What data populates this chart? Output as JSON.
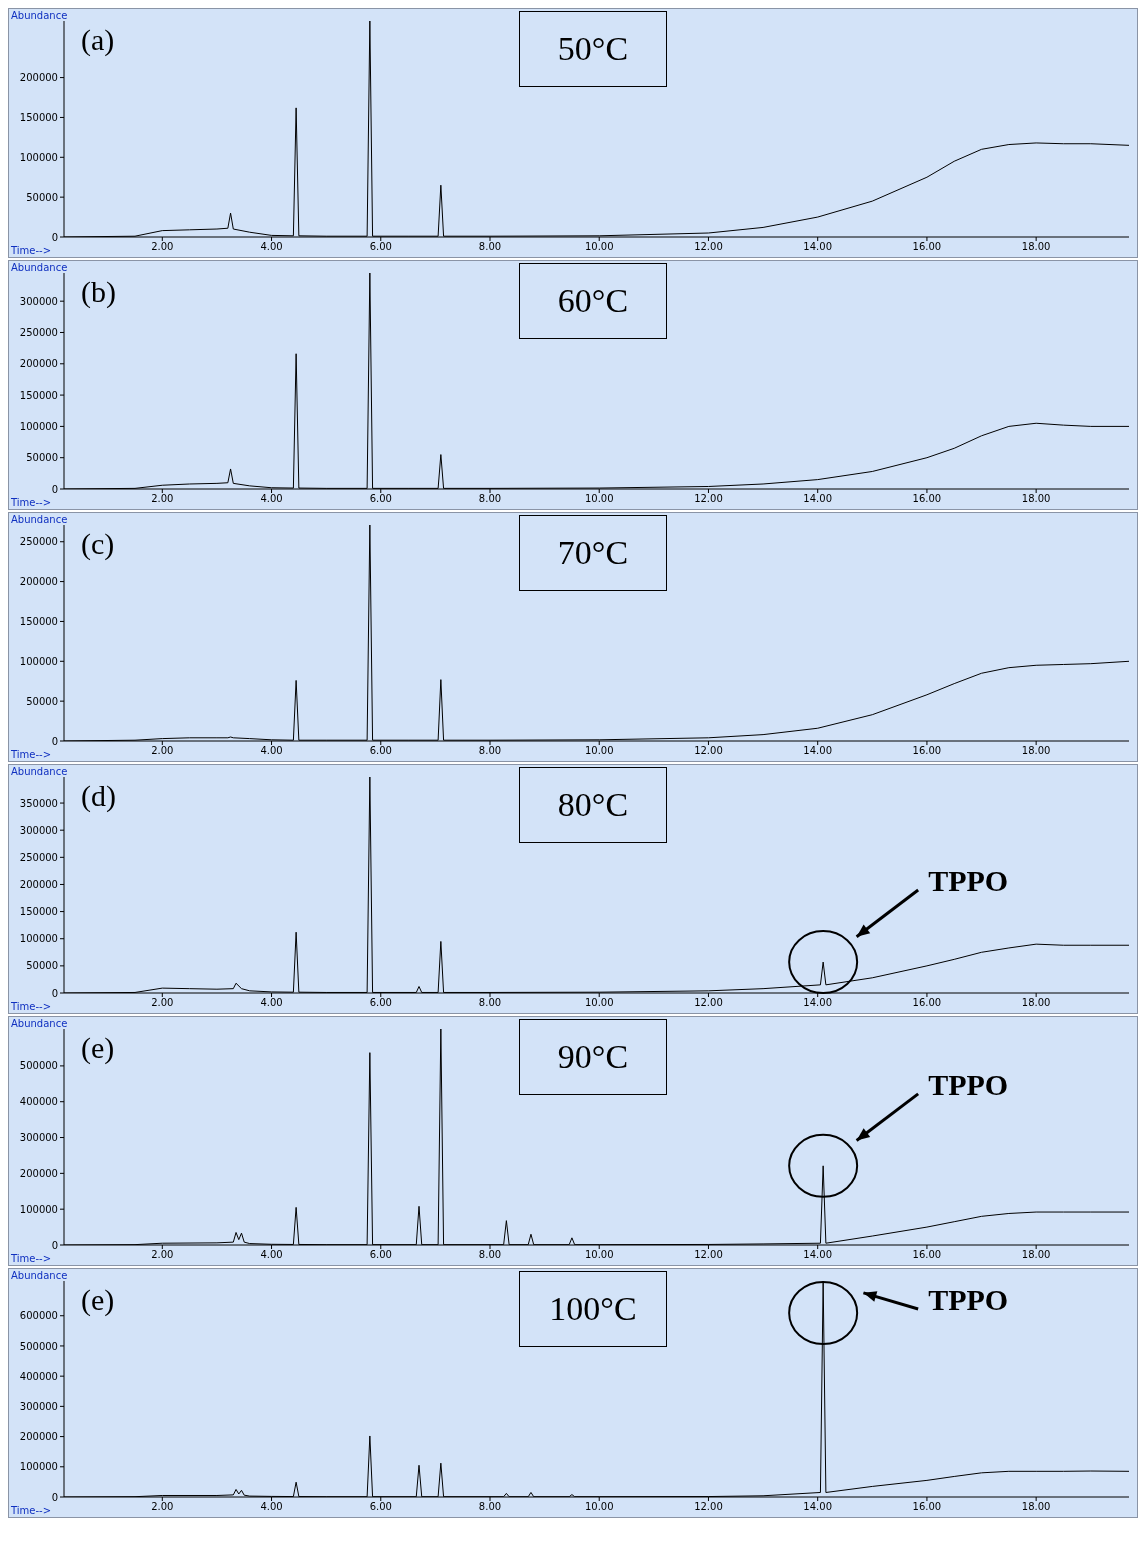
{
  "chart_data": [
    {
      "type": "line",
      "title": "50°C",
      "xlabel": "Time-->",
      "ylabel": "Abundance",
      "annotations": [
        "(a)"
      ],
      "color": "#000000",
      "marker": "none",
      "x": [
        0.2,
        1.5,
        2.0,
        2.5,
        3.0,
        3.2,
        3.25,
        3.3,
        3.6,
        4.0,
        4.4,
        4.45,
        4.5,
        5.0,
        5.75,
        5.8,
        5.85,
        6.5,
        7.05,
        7.1,
        7.15,
        8,
        10,
        12,
        13,
        14,
        15,
        16,
        16.5,
        17,
        17.5,
        18,
        18.5,
        19,
        19.7
      ],
      "values": [
        0,
        1000,
        8000,
        9000,
        10000,
        11000,
        30000,
        10000,
        6000,
        2000,
        1500,
        162000,
        1500,
        1000,
        1000,
        271000,
        1000,
        1000,
        1000,
        65000,
        1000,
        1000,
        1500,
        5000,
        12000,
        25000,
        45000,
        75000,
        95000,
        110000,
        116000,
        118000,
        117000,
        117000,
        115000
      ],
      "xlim": [
        0.2,
        19.7
      ],
      "xticks": [
        {
          "value": 2,
          "label": "2.00"
        },
        {
          "value": 4,
          "label": "4.00"
        },
        {
          "value": 6,
          "label": "6.00"
        },
        {
          "value": 8,
          "label": "8.00"
        },
        {
          "value": 10,
          "label": "10.00"
        },
        {
          "value": 12,
          "label": "12.00"
        },
        {
          "value": 14,
          "label": "14.00"
        },
        {
          "value": 16,
          "label": "16.00"
        },
        {
          "value": 18,
          "label": "18.00"
        }
      ],
      "ylim": [
        0,
        271000
      ],
      "yticks": [
        0,
        50000,
        100000,
        150000,
        200000
      ]
    },
    {
      "type": "line",
      "title": "60°C",
      "xlabel": "Time-->",
      "ylabel": "Abundance",
      "annotations": [
        "(b)"
      ],
      "color": "#000000",
      "marker": "none",
      "x": [
        0.2,
        1.5,
        2.0,
        2.5,
        3.0,
        3.2,
        3.25,
        3.3,
        3.6,
        4.0,
        4.4,
        4.45,
        4.5,
        5.0,
        5.75,
        5.8,
        5.85,
        6.5,
        7.05,
        7.1,
        7.15,
        8,
        10,
        12,
        13,
        14,
        15,
        16,
        16.5,
        17,
        17.5,
        18,
        18.5,
        19,
        19.7
      ],
      "values": [
        0,
        1000,
        6000,
        8000,
        9000,
        10000,
        32000,
        9000,
        5000,
        2000,
        1500,
        216000,
        1500,
        1000,
        1000,
        345000,
        1000,
        1000,
        1000,
        55000,
        1000,
        1000,
        1500,
        4000,
        8000,
        15000,
        28000,
        50000,
        65000,
        85000,
        100000,
        105000,
        102000,
        100000,
        100000
      ],
      "xlim": [
        0.2,
        19.7
      ],
      "xticks": [
        {
          "value": 2,
          "label": "2.00"
        },
        {
          "value": 4,
          "label": "4.00"
        },
        {
          "value": 6,
          "label": "6.00"
        },
        {
          "value": 8,
          "label": "8.00"
        },
        {
          "value": 10,
          "label": "10.00"
        },
        {
          "value": 12,
          "label": "12.00"
        },
        {
          "value": 14,
          "label": "14.00"
        },
        {
          "value": 16,
          "label": "16.00"
        },
        {
          "value": 18,
          "label": "18.00"
        }
      ],
      "ylim": [
        0,
        345000
      ],
      "yticks": [
        0,
        50000,
        100000,
        150000,
        200000,
        250000,
        300000
      ]
    },
    {
      "type": "line",
      "title": "70°C",
      "xlabel": "Time-->",
      "ylabel": "Abundance",
      "annotations": [
        "(c)"
      ],
      "color": "#000000",
      "marker": "none",
      "x": [
        0.2,
        1.5,
        2.0,
        2.5,
        3.0,
        3.2,
        3.25,
        3.3,
        3.6,
        4.0,
        4.4,
        4.45,
        4.5,
        5.0,
        5.75,
        5.8,
        5.85,
        6.5,
        7.05,
        7.1,
        7.15,
        8,
        10,
        12,
        13,
        14,
        15,
        16,
        16.5,
        17,
        17.5,
        18,
        18.5,
        19,
        19.7
      ],
      "values": [
        0,
        1000,
        3000,
        4000,
        4000,
        4000,
        5000,
        4000,
        3000,
        1500,
        1000,
        76000,
        1000,
        1000,
        1000,
        271000,
        1000,
        1000,
        1000,
        77000,
        1000,
        1000,
        1500,
        4000,
        8000,
        16000,
        33000,
        58000,
        72000,
        85000,
        92000,
        95000,
        96000,
        97000,
        100000
      ],
      "xlim": [
        0.2,
        19.7
      ],
      "xticks": [
        {
          "value": 2,
          "label": "2.00"
        },
        {
          "value": 4,
          "label": "4.00"
        },
        {
          "value": 6,
          "label": "6.00"
        },
        {
          "value": 8,
          "label": "8.00"
        },
        {
          "value": 10,
          "label": "10.00"
        },
        {
          "value": 12,
          "label": "12.00"
        },
        {
          "value": 14,
          "label": "14.00"
        },
        {
          "value": 16,
          "label": "16.00"
        },
        {
          "value": 18,
          "label": "18.00"
        }
      ],
      "ylim": [
        0,
        271000
      ],
      "yticks": [
        0,
        50000,
        100000,
        150000,
        200000,
        250000
      ]
    },
    {
      "type": "line",
      "title": "80°C",
      "xlabel": "Time-->",
      "ylabel": "Abundance",
      "annotations": [
        "(d)",
        "TPPO"
      ],
      "color": "#000000",
      "marker": "none",
      "x": [
        0.2,
        1.5,
        2.0,
        2.5,
        3.0,
        3.3,
        3.35,
        3.45,
        3.6,
        4.0,
        4.4,
        4.45,
        4.5,
        5.0,
        5.75,
        5.8,
        5.85,
        6.65,
        6.7,
        6.75,
        7.05,
        7.1,
        7.15,
        8,
        10,
        12,
        13,
        14.05,
        14.1,
        14.15,
        15,
        16,
        16.5,
        17,
        17.5,
        18,
        18.5,
        19,
        19.7
      ],
      "values": [
        0,
        1000,
        9000,
        8000,
        7000,
        8000,
        18000,
        8000,
        4000,
        2000,
        1500,
        112000,
        1500,
        1000,
        1000,
        398000,
        1000,
        1000,
        12000,
        1000,
        1000,
        95000,
        1000,
        1000,
        1500,
        4000,
        8000,
        15000,
        57000,
        15000,
        28000,
        50000,
        62000,
        75000,
        83000,
        90000,
        88000,
        88000,
        88000
      ],
      "xlim": [
        0.2,
        19.7
      ],
      "xticks": [
        {
          "value": 2,
          "label": "2.00"
        },
        {
          "value": 4,
          "label": "4.00"
        },
        {
          "value": 6,
          "label": "6.00"
        },
        {
          "value": 8,
          "label": "8.00"
        },
        {
          "value": 10,
          "label": "10.00"
        },
        {
          "value": 12,
          "label": "12.00"
        },
        {
          "value": 14,
          "label": "14.00"
        },
        {
          "value": 16,
          "label": "16.00"
        },
        {
          "value": 18,
          "label": "18.00"
        }
      ],
      "ylim": [
        0,
        398000
      ],
      "yticks": [
        0,
        50000,
        100000,
        150000,
        200000,
        250000,
        300000,
        350000
      ]
    },
    {
      "type": "line",
      "title": "90°C",
      "xlabel": "Time-->",
      "ylabel": "Abundance",
      "annotations": [
        "(e)",
        "TPPO"
      ],
      "color": "#000000",
      "marker": "none",
      "x": [
        0.2,
        1.5,
        2.0,
        3.0,
        3.3,
        3.35,
        3.4,
        3.45,
        3.5,
        3.6,
        4.0,
        4.4,
        4.45,
        4.5,
        5.0,
        5.75,
        5.8,
        5.85,
        6.65,
        6.7,
        6.75,
        7.05,
        7.1,
        7.15,
        8.25,
        8.3,
        8.35,
        8.7,
        8.75,
        8.8,
        9.45,
        9.5,
        9.55,
        10,
        12,
        13,
        14.05,
        14.1,
        14.15,
        15,
        16,
        16.5,
        17,
        17.5,
        18,
        18.5,
        19,
        19.7
      ],
      "values": [
        0,
        1000,
        5000,
        6000,
        8000,
        35000,
        15000,
        33000,
        8000,
        4000,
        2000,
        1500,
        105000,
        1500,
        1000,
        1000,
        537000,
        1000,
        1000,
        108000,
        1000,
        1000,
        603000,
        1000,
        1000,
        68000,
        1000,
        1000,
        30000,
        1000,
        1000,
        20000,
        1000,
        1000,
        1500,
        3000,
        5000,
        221000,
        5000,
        25000,
        50000,
        65000,
        80000,
        88000,
        92000,
        92000,
        92000,
        92000
      ],
      "xlim": [
        0.2,
        19.7
      ],
      "xticks": [
        {
          "value": 2,
          "label": "2.00"
        },
        {
          "value": 4,
          "label": "4.00"
        },
        {
          "value": 6,
          "label": "6.00"
        },
        {
          "value": 8,
          "label": "8.00"
        },
        {
          "value": 10,
          "label": "10.00"
        },
        {
          "value": 12,
          "label": "12.00"
        },
        {
          "value": 14,
          "label": "14.00"
        },
        {
          "value": 16,
          "label": "16.00"
        },
        {
          "value": 18,
          "label": "18.00"
        }
      ],
      "ylim": [
        0,
        603000
      ],
      "yticks": [
        0,
        100000,
        200000,
        300000,
        400000,
        500000
      ]
    },
    {
      "type": "line",
      "title": "100°C",
      "xlabel": "Time-->",
      "ylabel": "Abundance",
      "annotations": [
        "(e)",
        "TPPO"
      ],
      "color": "#000000",
      "marker": "none",
      "x": [
        0.2,
        1.5,
        2.0,
        3.0,
        3.3,
        3.35,
        3.4,
        3.45,
        3.5,
        3.6,
        4.0,
        4.4,
        4.45,
        4.5,
        5.0,
        5.75,
        5.8,
        5.85,
        6.65,
        6.7,
        6.75,
        7.05,
        7.1,
        7.15,
        8.25,
        8.3,
        8.35,
        8.7,
        8.75,
        8.8,
        9.45,
        9.5,
        9.55,
        10,
        12,
        13,
        14.05,
        14.1,
        14.15,
        15,
        16,
        16.5,
        17,
        17.5,
        18,
        18.5,
        19,
        19.7
      ],
      "values": [
        0,
        1000,
        5000,
        5000,
        7000,
        25000,
        10000,
        22000,
        6000,
        3000,
        2000,
        1500,
        49000,
        1500,
        1000,
        1000,
        202000,
        1000,
        1000,
        105000,
        1000,
        1000,
        112000,
        1000,
        1000,
        12000,
        1000,
        1000,
        15000,
        1000,
        1000,
        8000,
        1000,
        1000,
        1500,
        4000,
        15000,
        715000,
        15000,
        35000,
        55000,
        68000,
        80000,
        85000,
        85000,
        85000,
        86000,
        85000
      ],
      "xlim": [
        0.2,
        19.7
      ],
      "xticks": [
        {
          "value": 2,
          "label": "2.00"
        },
        {
          "value": 4,
          "label": "4.00"
        },
        {
          "value": 6,
          "label": "6.00"
        },
        {
          "value": 8,
          "label": "8.00"
        },
        {
          "value": 10,
          "label": "10.00"
        },
        {
          "value": 12,
          "label": "12.00"
        },
        {
          "value": 14,
          "label": "14.00"
        },
        {
          "value": 16,
          "label": "16.00"
        },
        {
          "value": 18,
          "label": "18.00"
        }
      ],
      "ylim": [
        0,
        715000
      ],
      "yticks": [
        0,
        100000,
        200000,
        300000,
        400000,
        500000,
        600000
      ]
    }
  ]
}
